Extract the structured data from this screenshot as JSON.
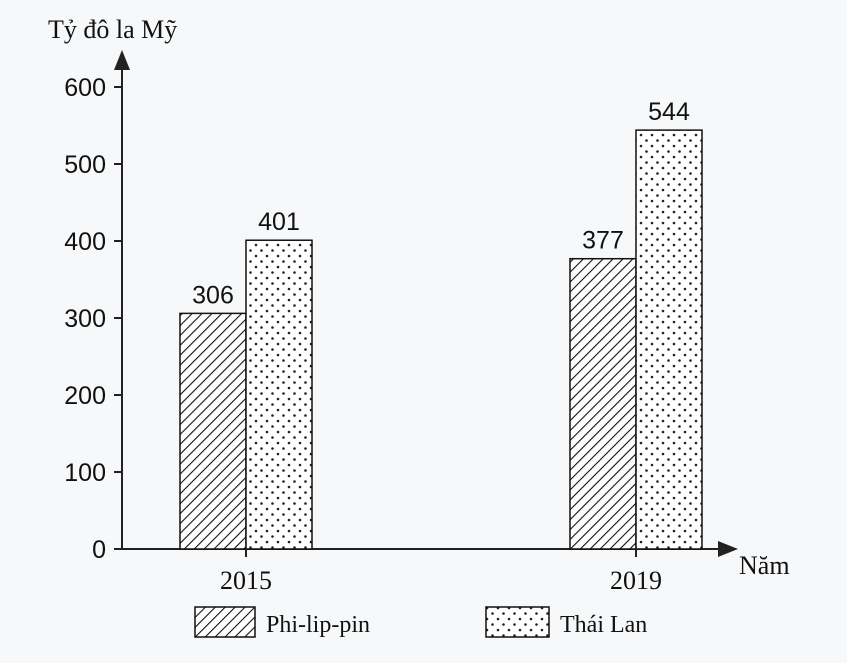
{
  "chart_data": {
    "type": "bar",
    "ylabel": "Tỷ đô la Mỹ",
    "xlabel": "Năm",
    "categories": [
      "2015",
      "2019"
    ],
    "ylim": [
      0,
      600
    ],
    "yticks": [
      "0",
      "100",
      "200",
      "300",
      "400",
      "500",
      "600"
    ],
    "grid": false,
    "legend_position": "bottom",
    "series": [
      {
        "name": "Phi-lip-pin",
        "pattern": "hatch",
        "values": [
          306,
          377
        ],
        "labels": [
          "306",
          "377"
        ]
      },
      {
        "name": "Thái Lan",
        "pattern": "dots",
        "values": [
          401,
          544
        ],
        "labels": [
          "401",
          "544"
        ]
      }
    ]
  }
}
